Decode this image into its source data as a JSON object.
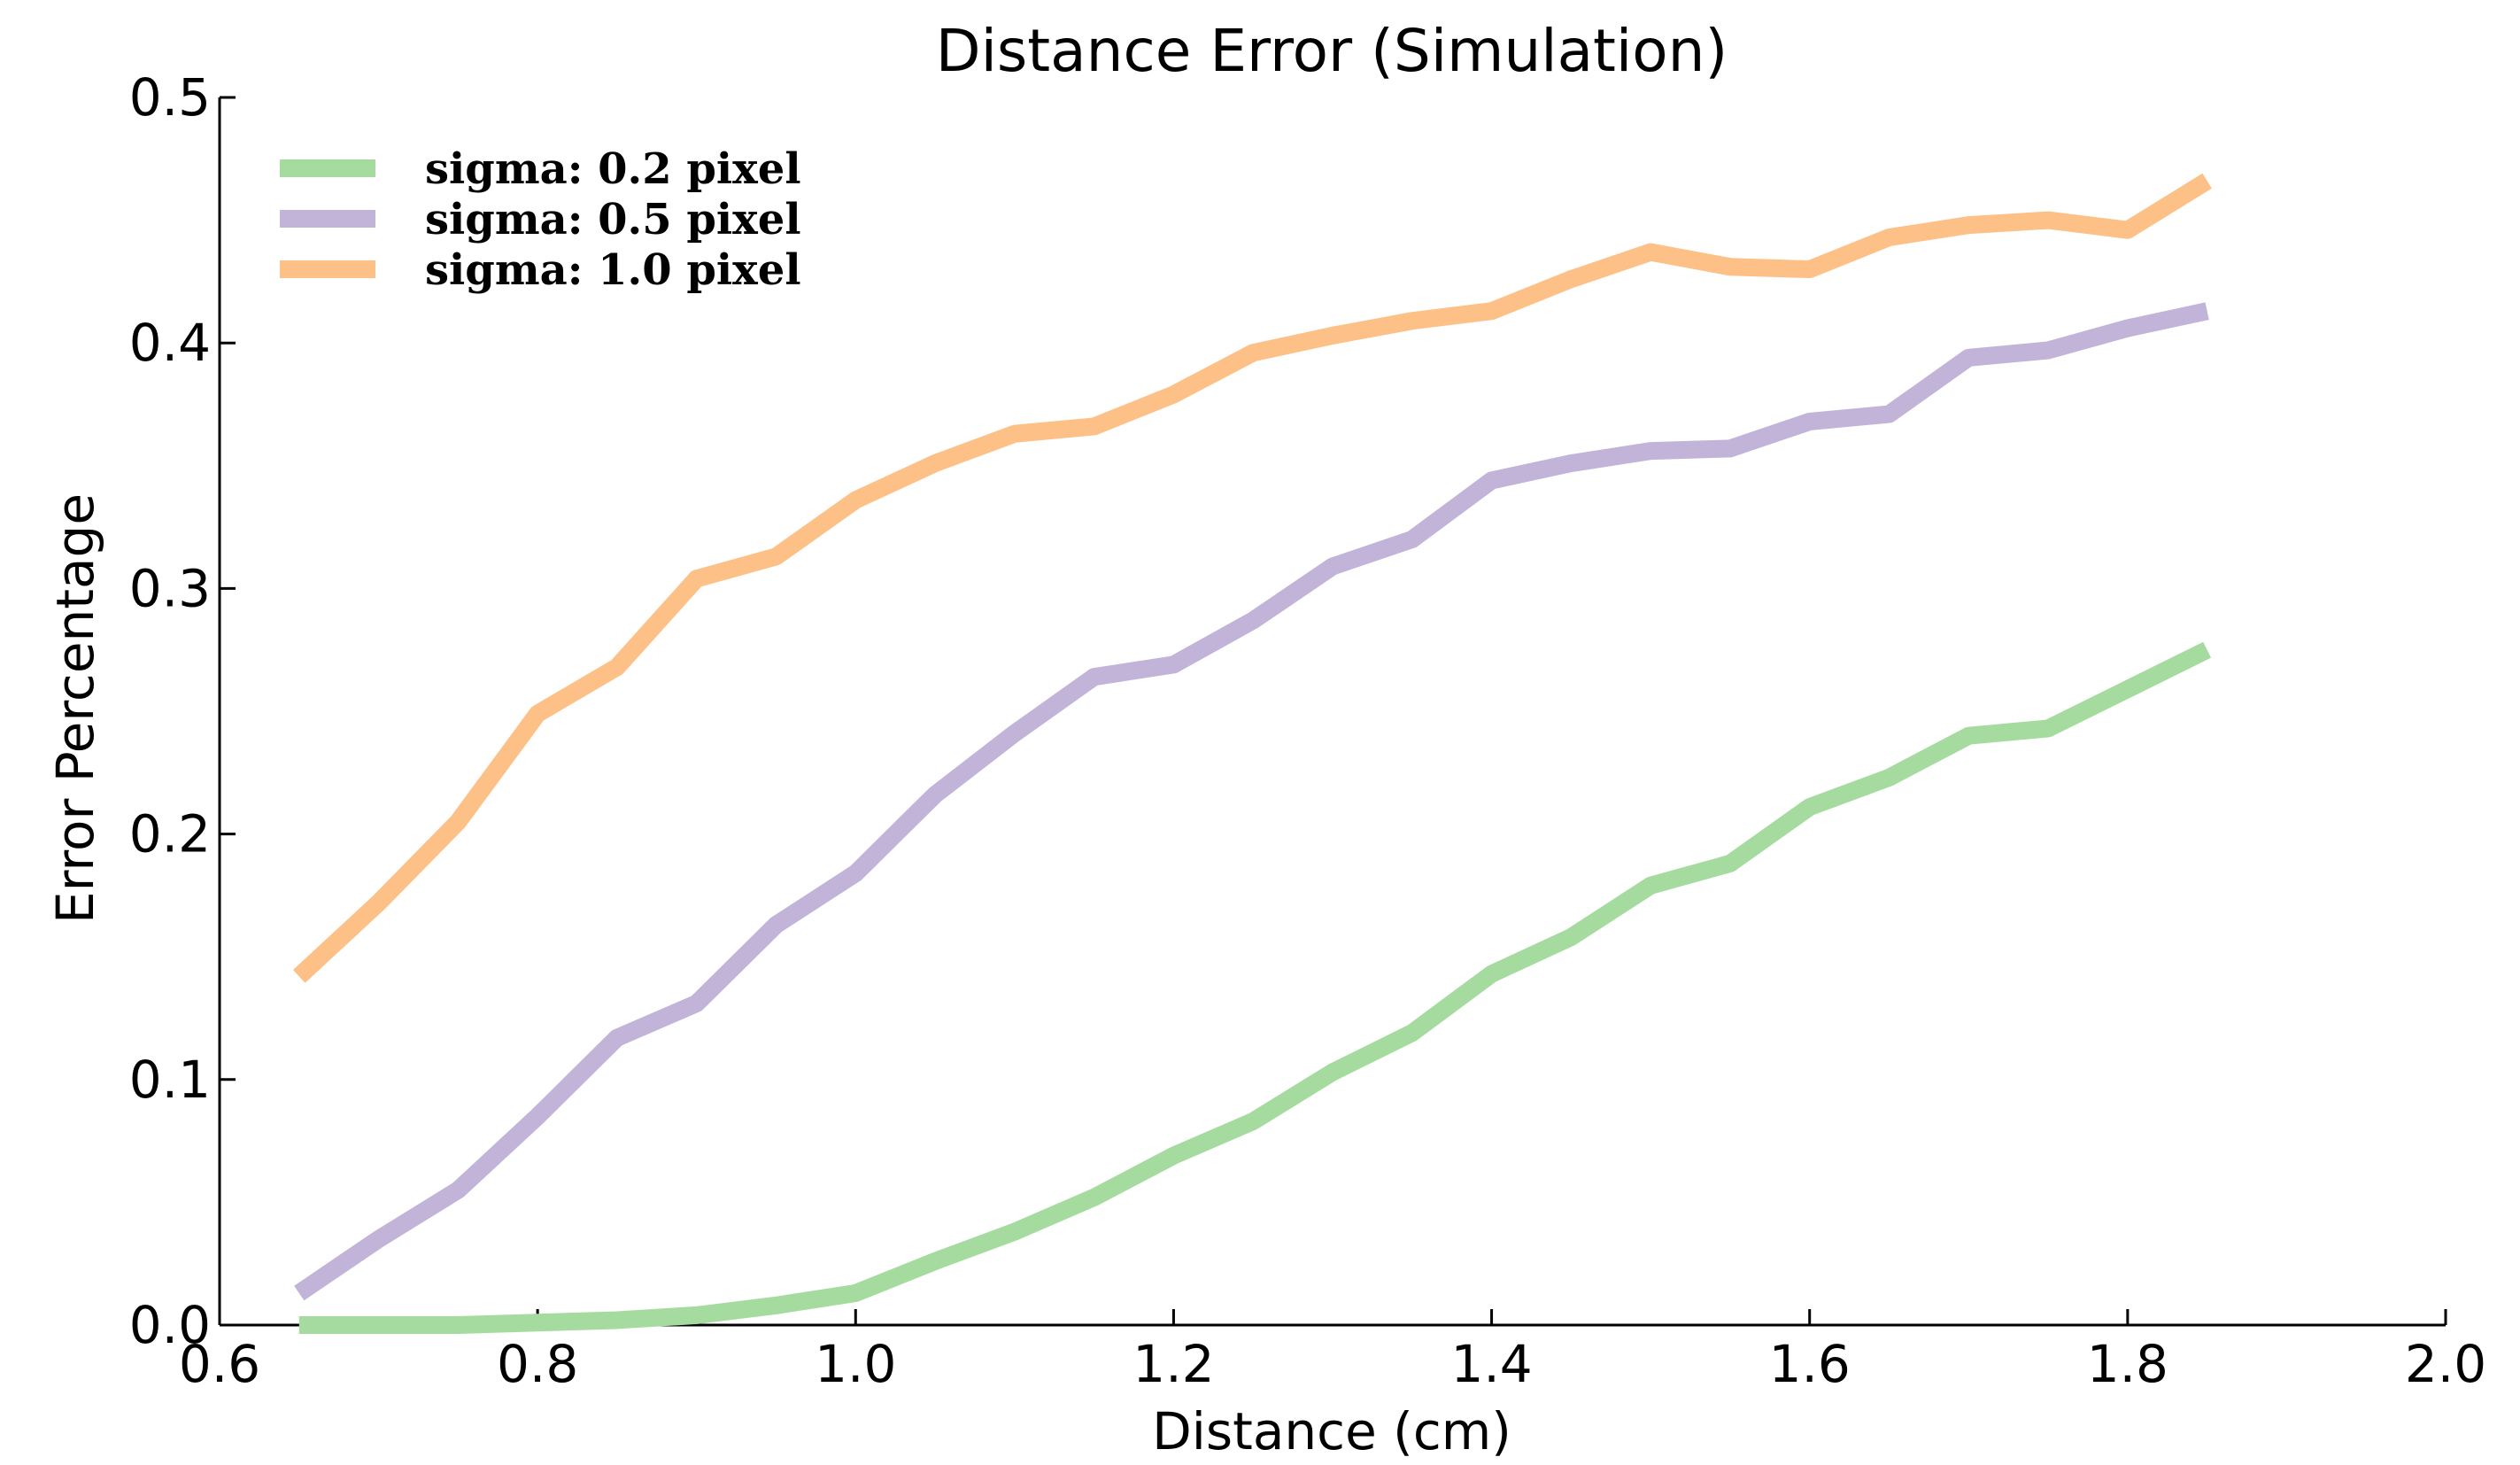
{
  "chart_data": {
    "type": "line",
    "title": "Distance Error (Simulation)",
    "xlabel": "Distance (cm)",
    "ylabel": "Error Percentage",
    "xlim": [
      0.6,
      2.0
    ],
    "ylim": [
      0.0,
      0.5
    ],
    "xticks": [
      "0.6",
      "0.8",
      "1.0",
      "1.2",
      "1.4",
      "1.6",
      "1.8",
      "2.0"
    ],
    "yticks": [
      "0.0",
      "0.1",
      "0.2",
      "0.3",
      "0.4",
      "0.5"
    ],
    "grid": false,
    "legend_position": "top-left",
    "x": [
      0.65,
      0.7,
      0.75,
      0.8,
      0.85,
      0.9,
      0.95,
      1.0,
      1.05,
      1.1,
      1.15,
      1.2,
      1.25,
      1.3,
      1.35,
      1.4,
      1.45,
      1.5,
      1.55,
      1.6,
      1.65,
      1.7,
      1.75,
      1.8,
      1.85
    ],
    "series": [
      {
        "name": "sigma: 0.2 pixel",
        "color": "#a6dba0",
        "values": [
          0.0,
          0.0,
          0.0,
          0.001,
          0.002,
          0.004,
          0.008,
          0.013,
          0.026,
          0.038,
          0.052,
          0.069,
          0.083,
          0.103,
          0.119,
          0.143,
          0.158,
          0.179,
          0.188,
          0.211,
          0.223,
          0.24,
          0.243,
          0.259,
          0.275
        ]
      },
      {
        "name": "sigma: 0.5 pixel",
        "color": "#c2b3d9",
        "values": [
          0.013,
          0.035,
          0.055,
          0.085,
          0.117,
          0.131,
          0.163,
          0.184,
          0.216,
          0.241,
          0.264,
          0.269,
          0.287,
          0.309,
          0.32,
          0.344,
          0.351,
          0.356,
          0.357,
          0.368,
          0.371,
          0.394,
          0.397,
          0.406,
          0.413
        ]
      },
      {
        "name": "sigma: 1.0 pixel",
        "color": "#fdc086",
        "values": [
          0.142,
          0.172,
          0.205,
          0.249,
          0.268,
          0.304,
          0.313,
          0.336,
          0.351,
          0.363,
          0.366,
          0.379,
          0.396,
          0.403,
          0.409,
          0.413,
          0.426,
          0.437,
          0.431,
          0.43,
          0.443,
          0.448,
          0.45,
          0.446,
          0.466
        ]
      }
    ]
  }
}
